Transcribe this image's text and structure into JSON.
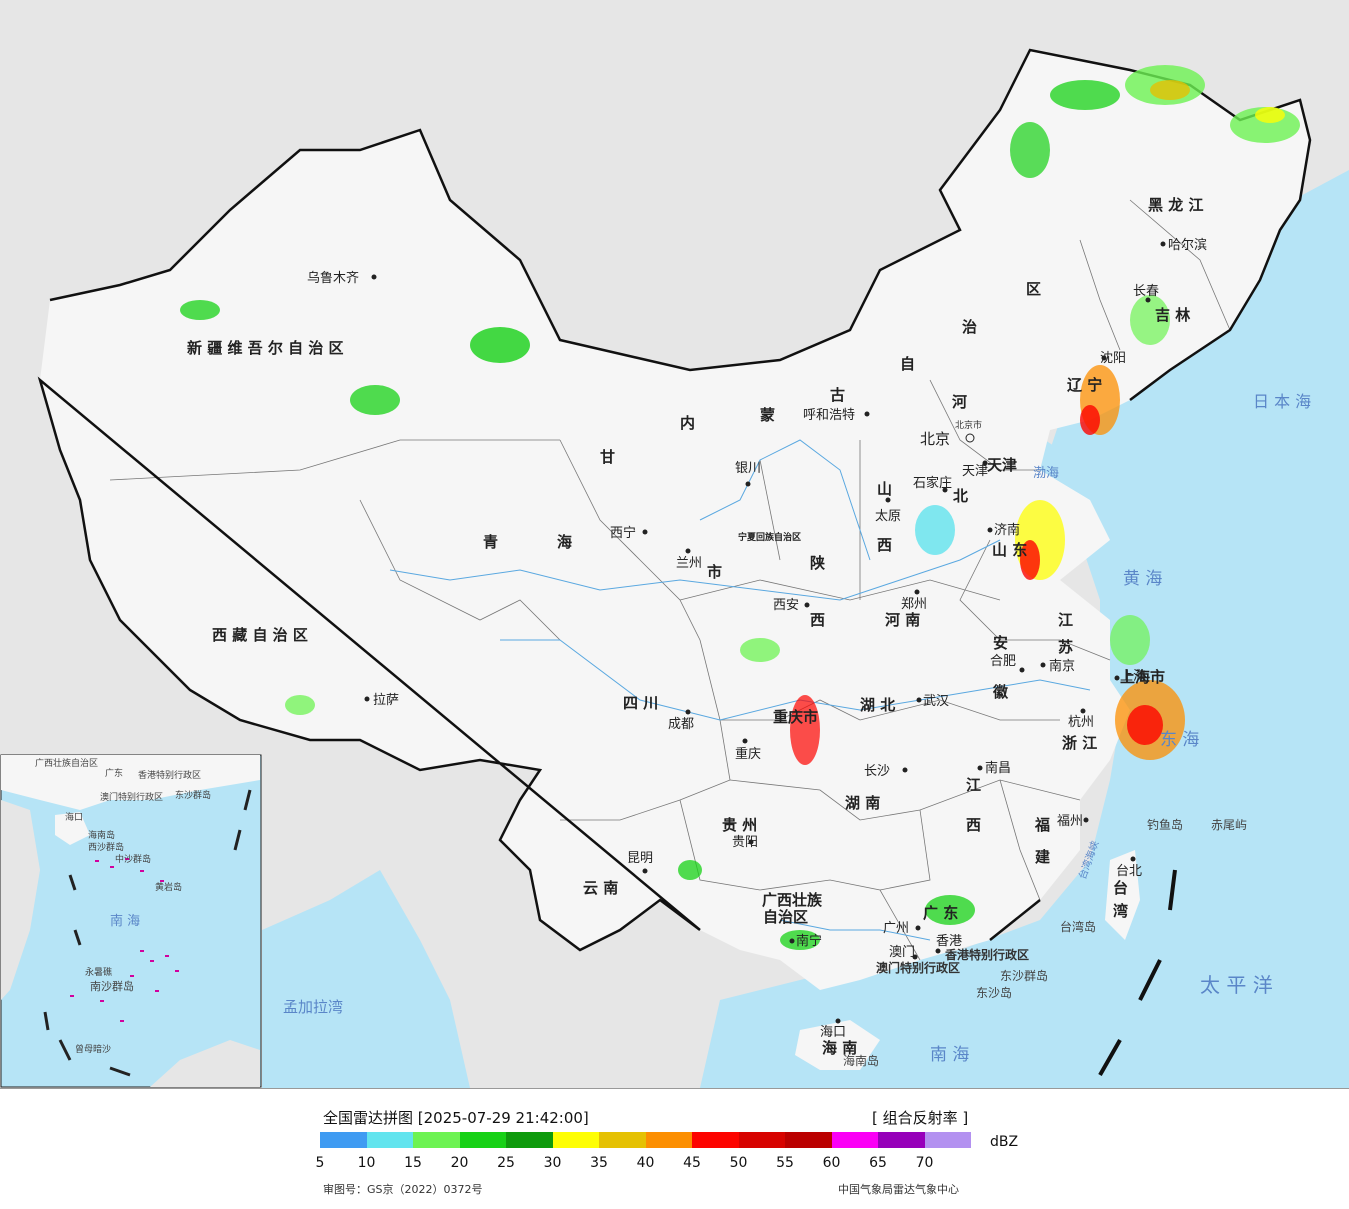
{
  "legend": {
    "title": "全国雷达拼图 [2025-07-29 21:42:00]",
    "product": "[ 组合反射率 ]",
    "unit": "dBZ",
    "ticks": [
      "5",
      "10",
      "15",
      "20",
      "25",
      "30",
      "35",
      "40",
      "45",
      "50",
      "55",
      "60",
      "65",
      "70"
    ],
    "colors": [
      "#3f9bf2",
      "#62e4ee",
      "#6df353",
      "#17d116",
      "#0e9a0c",
      "#fefe05",
      "#e5c103",
      "#fc8f02",
      "#fd0400",
      "#d70300",
      "#bb0000",
      "#fb00f6",
      "#9700ba",
      "#b391f0"
    ],
    "approval": "审图号：GS京（2022）0372号",
    "source": "中国气象局雷达气象中心"
  },
  "map": {
    "colors": {
      "sea": "#b6e4f6",
      "land_china": "#f6f6f6",
      "land_other": "#e6e6e6",
      "border": "#111111",
      "river": "#5aa8e0"
    },
    "regions": [
      {
        "name": "新疆维吾尔自治区",
        "labels": [
          "新",
          "疆",
          "维",
          "吾",
          "尔",
          "自",
          "治",
          "区"
        ]
      },
      {
        "name": "西藏自治区",
        "labels": [
          "西",
          "藏",
          "自",
          "治",
          "区"
        ]
      },
      {
        "name": "青海",
        "labels": [
          "青",
          "海"
        ]
      },
      {
        "name": "甘肃",
        "labels": [
          "甘"
        ]
      },
      {
        "name": "内蒙古自治区",
        "labels": [
          "内",
          "蒙",
          "古",
          "自",
          "治",
          "区"
        ]
      },
      {
        "name": "黑龙江",
        "labels": [
          "黑",
          "龙",
          "江"
        ]
      },
      {
        "name": "吉林",
        "labels": [
          "吉",
          "林"
        ]
      },
      {
        "name": "辽宁",
        "labels": [
          "辽",
          "宁"
        ]
      },
      {
        "name": "河北",
        "labels": [
          "河",
          "北"
        ]
      },
      {
        "name": "山西",
        "labels": [
          "山",
          "西"
        ]
      },
      {
        "name": "陕西",
        "labels": [
          "陕",
          "西"
        ]
      },
      {
        "name": "河南",
        "labels": [
          "河",
          "南"
        ]
      },
      {
        "name": "山东",
        "labels": [
          "山",
          "东"
        ]
      },
      {
        "name": "江苏",
        "labels": [
          "江",
          "苏"
        ]
      },
      {
        "name": "安徽",
        "labels": [
          "安",
          "徽"
        ]
      },
      {
        "name": "湖北",
        "labels": [
          "湖",
          "北"
        ]
      },
      {
        "name": "四川",
        "labels": [
          "四",
          "川"
        ]
      },
      {
        "name": "重庆市",
        "labels": [
          "重",
          "庆",
          "市"
        ]
      },
      {
        "name": "湖南",
        "labels": [
          "湖",
          "南"
        ]
      },
      {
        "name": "江西",
        "labels": [
          "江",
          "西"
        ]
      },
      {
        "name": "浙江",
        "labels": [
          "浙",
          "江"
        ]
      },
      {
        "name": "福建",
        "labels": [
          "福",
          "建"
        ]
      },
      {
        "name": "贵州",
        "labels": [
          "贵",
          "州"
        ]
      },
      {
        "name": "云南",
        "labels": [
          "云",
          "南"
        ]
      },
      {
        "name": "广西壮族自治区",
        "labels": [
          "广西壮族",
          "自治区"
        ]
      },
      {
        "name": "广东",
        "labels": [
          "广",
          "东"
        ]
      },
      {
        "name": "海南",
        "labels": [
          "海",
          "南"
        ]
      },
      {
        "name": "台湾",
        "labels": [
          "台",
          "湾"
        ]
      },
      {
        "name": "宁夏回族自治区",
        "labels": [
          "宁",
          "夏",
          "回",
          "族",
          "自",
          "治",
          "区"
        ]
      },
      {
        "name": "天津",
        "labels": [
          "天津"
        ]
      },
      {
        "name": "上海市",
        "labels": [
          "上海市"
        ]
      }
    ],
    "cities": [
      "乌鲁木齐",
      "拉萨",
      "西宁",
      "兰州",
      "银川",
      "呼和浩特",
      "北京",
      "天津",
      "石家庄",
      "太原",
      "西安",
      "郑州",
      "济南",
      "南京",
      "合肥",
      "上海",
      "杭州",
      "武汉",
      "成都",
      "重庆",
      "长沙",
      "南昌",
      "福州",
      "贵阳",
      "昆明",
      "南宁",
      "广州",
      "香港",
      "澳门",
      "海口",
      "台北",
      "哈尔滨",
      "长春",
      "沈阳"
    ],
    "special_labels": [
      "北京市",
      "香港特别行政区",
      "澳门特别行政区",
      "东沙群岛",
      "钓鱼岛",
      "赤尾屿",
      "台湾岛",
      "海南岛"
    ],
    "seas": [
      "日本海",
      "渤海",
      "黄海",
      "东海",
      "台湾海峡",
      "太平洋",
      "南海"
    ],
    "inset": {
      "labels": [
        "广西壮族自治区",
        "广东",
        "香港特别行政区",
        "澳门特别行政区",
        "东沙群岛",
        "海口",
        "海南岛",
        "西沙群岛",
        "中沙群岛",
        "黄岩岛",
        "南海",
        "南沙群岛",
        "曾母暗沙",
        "永暑礁"
      ],
      "outside_label": "孟加拉湾"
    }
  }
}
